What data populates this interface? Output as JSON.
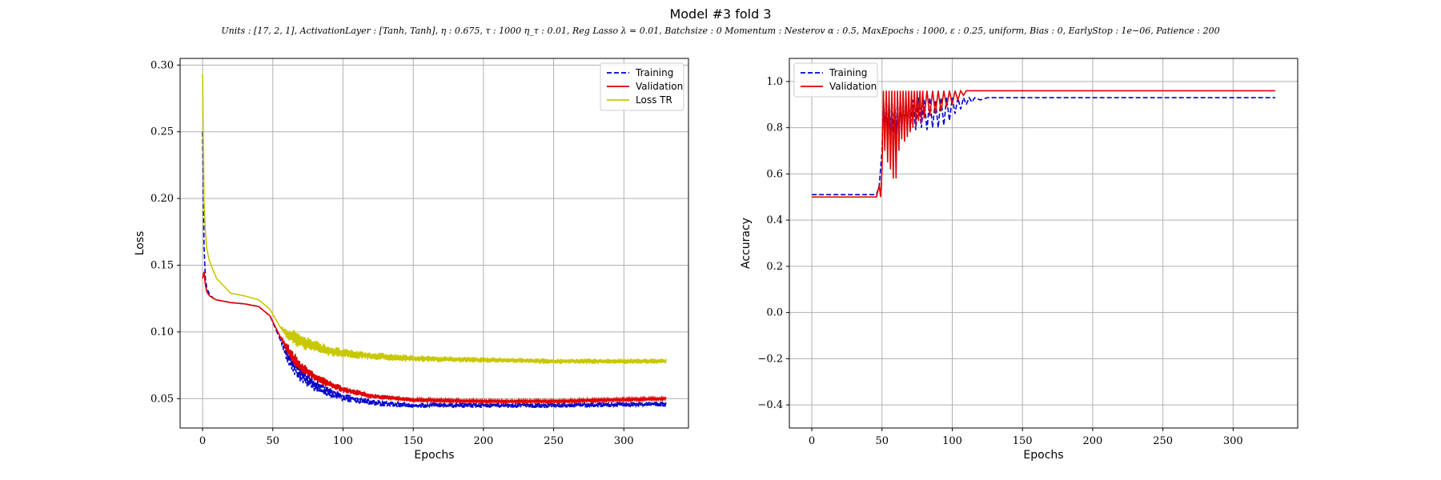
{
  "figure": {
    "title": "Model #3 fold 3",
    "subtitle": "Units : [17, 2, 1], ActivationLayer : [Tanh, Tanh], η : 0.675, τ : 1000 η_τ : 0.01, Reg Lasso λ = 0.01, Batchsize : 0 Momentum : Nesterov α : 0.5, MaxEpochs : 1000, ε : 0.25, uniform, Bias : 0, EarlyStop : 1e−06, Patience : 200"
  },
  "chart_data": [
    {
      "type": "line",
      "xlabel": "Epochs",
      "ylabel": "Loss",
      "xlim": [
        -16,
        346
      ],
      "ylim": [
        0.028,
        0.305
      ],
      "xticks": [
        0,
        50,
        100,
        150,
        200,
        250,
        300
      ],
      "yticks": [
        0.05,
        0.1,
        0.15,
        0.2,
        0.25,
        0.3
      ],
      "ytick_labels": [
        "0.05",
        "0.10",
        "0.15",
        "0.20",
        "0.25",
        "0.30"
      ],
      "grid": true,
      "legend_position": "top-right",
      "series": [
        {
          "name": "Training",
          "color": "#0000cc",
          "dash": "dashed",
          "noise": [
            0,
            0,
            0,
            0,
            0,
            0,
            0,
            0,
            0,
            0,
            0,
            0,
            0.006,
            0.007,
            0.006,
            0.005,
            0.004,
            0.003,
            0.0025,
            0.002,
            0.002,
            0.002,
            0.002
          ],
          "x": [
            0,
            1,
            2,
            3,
            5,
            8,
            10,
            20,
            30,
            40,
            48,
            55,
            60,
            65,
            70,
            80,
            90,
            100,
            120,
            150,
            200,
            250,
            330
          ],
          "y": [
            0.25,
            0.165,
            0.14,
            0.133,
            0.128,
            0.125,
            0.124,
            0.122,
            0.121,
            0.119,
            0.112,
            0.095,
            0.083,
            0.075,
            0.068,
            0.06,
            0.055,
            0.051,
            0.047,
            0.045,
            0.045,
            0.045,
            0.046
          ]
        },
        {
          "name": "Validation",
          "color": "#e00000",
          "dash": "solid",
          "noise": [
            0,
            0,
            0,
            0,
            0,
            0,
            0,
            0,
            0,
            0,
            0,
            0,
            0.004,
            0.005,
            0.004,
            0.0035,
            0.003,
            0.0025,
            0.002,
            0.0015,
            0.0012,
            0.0012,
            0.0012
          ],
          "x": [
            0,
            1,
            2,
            3,
            5,
            8,
            10,
            20,
            30,
            40,
            48,
            55,
            60,
            65,
            70,
            80,
            90,
            100,
            120,
            150,
            200,
            250,
            330
          ],
          "y": [
            0.14,
            0.145,
            0.135,
            0.13,
            0.127,
            0.125,
            0.124,
            0.122,
            0.121,
            0.119,
            0.112,
            0.097,
            0.088,
            0.08,
            0.074,
            0.066,
            0.061,
            0.057,
            0.052,
            0.049,
            0.048,
            0.048,
            0.05
          ]
        },
        {
          "name": "Loss TR",
          "color": "#c8c800",
          "dash": "solid",
          "noise": [
            0,
            0,
            0,
            0,
            0,
            0,
            0,
            0,
            0,
            0,
            0,
            0,
            0.004,
            0.006,
            0.006,
            0.005,
            0.004,
            0.0035,
            0.003,
            0.0025,
            0.002,
            0.002,
            0.002
          ],
          "x": [
            0,
            1,
            2,
            3,
            5,
            8,
            10,
            20,
            30,
            40,
            48,
            55,
            60,
            65,
            70,
            80,
            90,
            100,
            120,
            150,
            200,
            250,
            330
          ],
          "y": [
            0.293,
            0.2,
            0.175,
            0.162,
            0.153,
            0.145,
            0.14,
            0.129,
            0.127,
            0.124,
            0.117,
            0.104,
            0.099,
            0.096,
            0.093,
            0.089,
            0.086,
            0.084,
            0.082,
            0.08,
            0.079,
            0.078,
            0.078
          ]
        }
      ]
    },
    {
      "type": "line",
      "xlabel": "Epochs",
      "ylabel": "Accuracy",
      "xlim": [
        -16,
        346
      ],
      "ylim": [
        -0.5,
        1.1
      ],
      "xticks": [
        0,
        50,
        100,
        150,
        200,
        250,
        300
      ],
      "yticks": [
        -0.4,
        -0.2,
        0.0,
        0.2,
        0.4,
        0.6,
        0.8,
        1.0
      ],
      "ytick_labels": [
        "−0.4",
        "−0.2",
        "0.0",
        "0.2",
        "0.4",
        "0.6",
        "0.8",
        "1.0"
      ],
      "grid": true,
      "legend_position": "top-left",
      "series": [
        {
          "name": "Training",
          "color": "#0000cc",
          "dash": "dashed",
          "x": [
            0,
            46,
            48,
            50,
            51,
            52,
            53,
            54,
            55,
            56,
            57,
            58,
            59,
            60,
            61,
            62,
            63,
            64,
            65,
            66,
            67,
            68,
            69,
            70,
            72,
            74,
            76,
            78,
            80,
            82,
            84,
            86,
            88,
            90,
            92,
            94,
            96,
            98,
            100,
            102,
            104,
            106,
            108,
            110,
            112,
            114,
            116,
            120,
            125,
            130,
            330
          ],
          "y": [
            0.51,
            0.51,
            0.55,
            0.7,
            0.92,
            0.8,
            0.93,
            0.78,
            0.92,
            0.76,
            0.93,
            0.78,
            0.91,
            0.77,
            0.93,
            0.76,
            0.92,
            0.78,
            0.93,
            0.79,
            0.92,
            0.78,
            0.93,
            0.79,
            0.92,
            0.79,
            0.93,
            0.8,
            0.92,
            0.79,
            0.93,
            0.8,
            0.92,
            0.8,
            0.93,
            0.81,
            0.93,
            0.83,
            0.93,
            0.86,
            0.93,
            0.88,
            0.93,
            0.9,
            0.93,
            0.91,
            0.93,
            0.92,
            0.93,
            0.93,
            0.93
          ]
        },
        {
          "name": "Validation",
          "color": "#e00000",
          "dash": "solid",
          "x": [
            0,
            46,
            48,
            49,
            50,
            51,
            52,
            53,
            54,
            55,
            56,
            57,
            58,
            59,
            60,
            61,
            62,
            63,
            64,
            65,
            66,
            67,
            68,
            69,
            70,
            71,
            72,
            73,
            74,
            75,
            76,
            77,
            78,
            79,
            80,
            82,
            84,
            86,
            88,
            90,
            92,
            94,
            96,
            98,
            100,
            102,
            104,
            106,
            108,
            110,
            112,
            330
          ],
          "y": [
            0.5,
            0.5,
            0.55,
            0.5,
            0.62,
            0.96,
            0.7,
            0.96,
            0.65,
            0.96,
            0.62,
            0.96,
            0.58,
            0.96,
            0.58,
            0.96,
            0.7,
            0.96,
            0.75,
            0.96,
            0.74,
            0.96,
            0.76,
            0.96,
            0.78,
            0.96,
            0.8,
            0.96,
            0.81,
            0.96,
            0.83,
            0.96,
            0.82,
            0.96,
            0.84,
            0.96,
            0.85,
            0.96,
            0.86,
            0.96,
            0.87,
            0.96,
            0.89,
            0.96,
            0.9,
            0.96,
            0.92,
            0.96,
            0.94,
            0.96,
            0.96,
            0.96
          ]
        }
      ]
    }
  ]
}
